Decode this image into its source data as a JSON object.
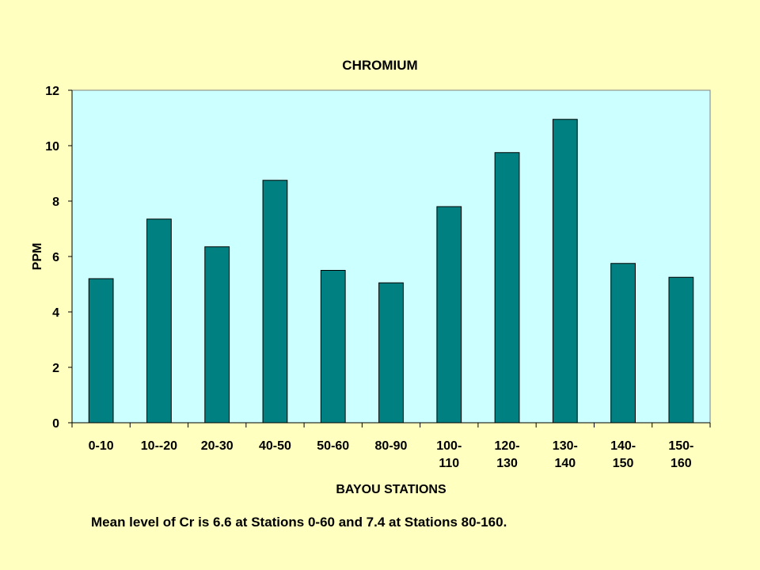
{
  "chart_data": {
    "type": "bar",
    "title": "CHROMIUM",
    "xlabel": "BAYOU STATIONS",
    "ylabel": "PPM",
    "categories": [
      [
        "0-10"
      ],
      [
        "10--20"
      ],
      [
        "20-30"
      ],
      [
        "40-50"
      ],
      [
        "50-60"
      ],
      [
        "80-90"
      ],
      [
        "100-",
        "110"
      ],
      [
        "120-",
        "130"
      ],
      [
        "130-",
        "140"
      ],
      [
        "140-",
        "150"
      ],
      [
        "150-",
        "160"
      ]
    ],
    "values": [
      5.2,
      7.35,
      6.35,
      8.75,
      5.5,
      5.05,
      7.8,
      9.75,
      10.95,
      5.75,
      5.25
    ],
    "ylim": [
      0,
      12
    ],
    "yticks": [
      0,
      2,
      4,
      6,
      8,
      10,
      12
    ],
    "grid": false,
    "colors": {
      "bar": "#008080",
      "plot_background": "#ccffff",
      "page_background": "#ffffc0"
    }
  },
  "caption": "Mean level of Cr is 6.6 at Stations 0-60 and 7.4 at Stations 80-160."
}
